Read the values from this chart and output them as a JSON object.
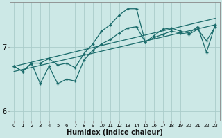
{
  "xlabel": "Humidex (Indice chaleur)",
  "bg_color": "#cce8e6",
  "grid_color": "#aaccca",
  "line_color": "#1a6b6b",
  "xlim": [
    -0.5,
    23.5
  ],
  "ylim": [
    5.85,
    7.7
  ],
  "yticks": [
    6,
    7
  ],
  "xticks": [
    0,
    1,
    2,
    3,
    4,
    5,
    6,
    7,
    8,
    9,
    10,
    11,
    12,
    13,
    14,
    15,
    16,
    17,
    18,
    19,
    20,
    21,
    22,
    23
  ],
  "series": {
    "reg1": {
      "x": [
        0,
        23
      ],
      "y": [
        6.62,
        7.35
      ]
    },
    "reg2": {
      "x": [
        0,
        23
      ],
      "y": [
        6.7,
        7.45
      ]
    },
    "zigzag": {
      "x": [
        0,
        1,
        2,
        3,
        4,
        5,
        6,
        7,
        8,
        9,
        10,
        11,
        12,
        13,
        14,
        15,
        16,
        17,
        18,
        19,
        20,
        21,
        22,
        23
      ],
      "y": [
        6.7,
        6.62,
        6.75,
        6.43,
        6.7,
        6.43,
        6.5,
        6.47,
        6.8,
        6.95,
        7.05,
        7.12,
        7.22,
        7.3,
        7.32,
        7.08,
        7.15,
        7.2,
        7.25,
        7.22,
        7.2,
        7.28,
        7.1,
        7.32
      ]
    },
    "peak": {
      "x": [
        0,
        1,
        2,
        3,
        4,
        5,
        6,
        7,
        8,
        9,
        10,
        11,
        12,
        13,
        14,
        15,
        16,
        17,
        18,
        19,
        20,
        21,
        22,
        23
      ],
      "y": [
        6.7,
        6.62,
        6.75,
        6.75,
        6.82,
        6.72,
        6.75,
        6.68,
        6.9,
        7.05,
        7.25,
        7.35,
        7.5,
        7.6,
        7.6,
        7.08,
        7.18,
        7.28,
        7.3,
        7.25,
        7.22,
        7.32,
        6.92,
        7.35
      ]
    }
  }
}
